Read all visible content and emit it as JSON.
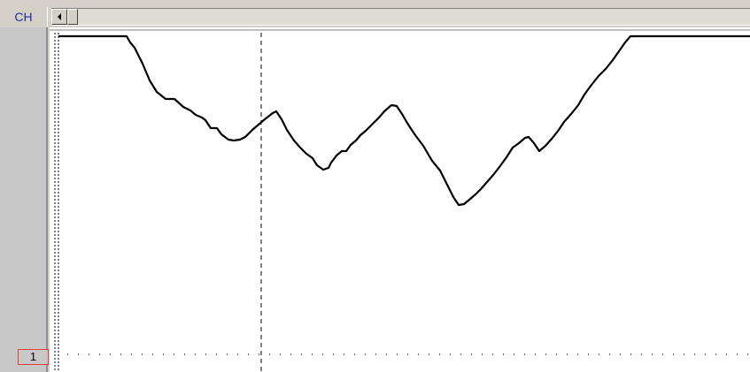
{
  "header": {
    "channel_label": "CH"
  },
  "row": {
    "index": "1"
  },
  "icons": {
    "scroll_left": "triangle-left-icon"
  },
  "colors": {
    "channel_text": "#1f2f9a",
    "marker_border": "#e04040",
    "trace": "#000000"
  }
}
